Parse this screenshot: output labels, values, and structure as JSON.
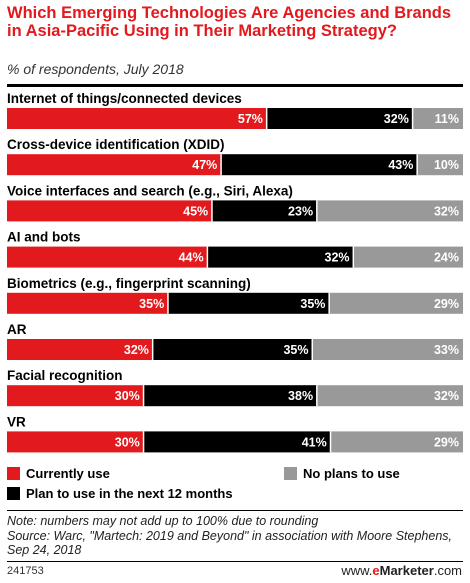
{
  "title": "Which Emerging Technologies Are Agencies and Brands in Asia-Pacific Using in Their Marketing Strategy?",
  "subtitle": "% of respondents, July 2018",
  "colors": {
    "currently": "#e2191d",
    "plan": "#000000",
    "no_plans": "#999999",
    "title": "#e2191d"
  },
  "chart_data": {
    "type": "bar",
    "orientation": "horizontal-stacked-100",
    "categories": [
      "Internet of things/connected devices",
      "Cross-device identification (XDID)",
      "Voice interfaces and search (e.g., Siri, Alexa)",
      "AI and bots",
      "Biometrics (e.g., fingerprint scanning)",
      "AR",
      "Facial recognition",
      "VR"
    ],
    "series": [
      {
        "name": "Currently use",
        "values": [
          57,
          47,
          45,
          44,
          35,
          32,
          30,
          30
        ]
      },
      {
        "name": "Plan to use in the next 12 months",
        "values": [
          32,
          43,
          23,
          32,
          35,
          35,
          38,
          41
        ]
      },
      {
        "name": "No plans to use",
        "values": [
          11,
          10,
          32,
          24,
          29,
          33,
          32,
          29
        ]
      }
    ],
    "legend": [
      {
        "label": "Currently use",
        "color_key": "currently"
      },
      {
        "label": "No plans to use",
        "color_key": "no_plans"
      },
      {
        "label": "Plan to use in the next 12 months",
        "color_key": "plan"
      }
    ],
    "legend_position": "bottom",
    "xlim": [
      0,
      100
    ],
    "value_suffix": "%"
  },
  "note": "Note: numbers may not add up to 100% due to rounding",
  "source": "Source: Warc, \"Martech: 2019 and Beyond\" in association with Moore Stephens, Sep 24, 2018",
  "footer": {
    "id": "241753",
    "brand_e": "e",
    "brand_rest": "Marketer",
    "brand_suffix": ".com",
    "brand_prefix": "www."
  }
}
